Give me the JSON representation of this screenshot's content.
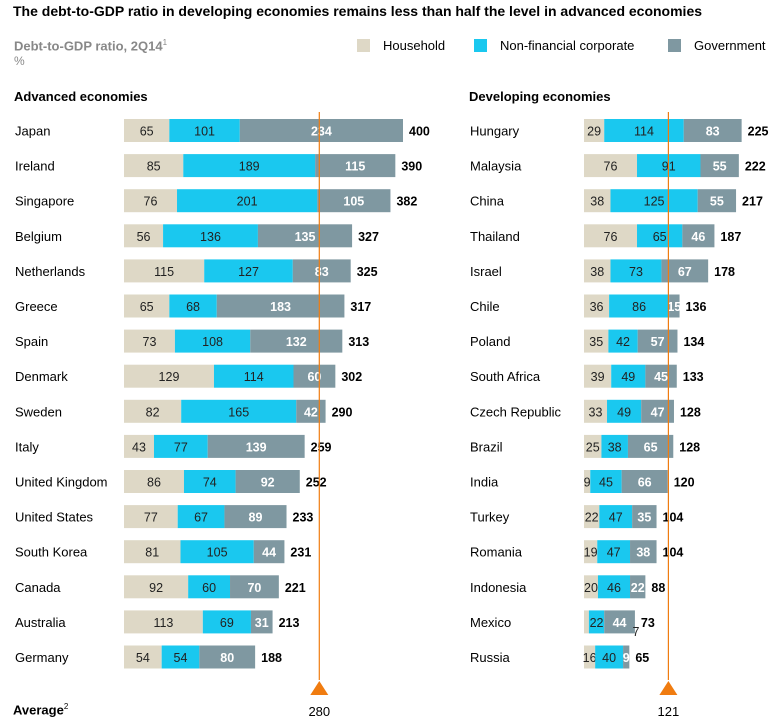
{
  "title": "The debt-to-GDP ratio in developing economies remains less than half the level in advanced economies",
  "subtitle": "Debt-to-GDP ratio, 2Q14",
  "subtitle_footnote": "1",
  "unit": "%",
  "average_label": "Average",
  "average_footnote": "2",
  "legend": [
    {
      "name": "Household",
      "color": "#ded8c6"
    },
    {
      "name": "Non-financial corporate",
      "color": "#1ac8ef"
    },
    {
      "name": "Government",
      "color": "#7f98a1"
    }
  ],
  "colors": {
    "household": "#ded8c6",
    "corporate": "#1ac8ef",
    "government": "#7f98a1",
    "average": "#f07c10"
  },
  "chart_data": [
    {
      "type": "bar",
      "orientation": "horizontal-stacked",
      "title": "Advanced economies",
      "categories": [
        "Japan",
        "Ireland",
        "Singapore",
        "Belgium",
        "Netherlands",
        "Greece",
        "Spain",
        "Denmark",
        "Sweden",
        "Italy",
        "United Kingdom",
        "United States",
        "South Korea",
        "Canada",
        "Australia",
        "Germany"
      ],
      "series": [
        {
          "name": "Household",
          "values": [
            65,
            85,
            76,
            56,
            115,
            65,
            73,
            129,
            82,
            43,
            86,
            77,
            81,
            92,
            113,
            54
          ]
        },
        {
          "name": "Non-financial corporate",
          "values": [
            101,
            189,
            201,
            136,
            127,
            68,
            108,
            114,
            165,
            77,
            74,
            67,
            105,
            60,
            69,
            54
          ]
        },
        {
          "name": "Government",
          "values": [
            234,
            115,
            105,
            135,
            83,
            183,
            132,
            60,
            42,
            139,
            92,
            89,
            44,
            70,
            31,
            80
          ]
        }
      ],
      "totals": [
        400,
        390,
        382,
        327,
        325,
        317,
        313,
        302,
        290,
        259,
        252,
        233,
        231,
        221,
        213,
        188
      ],
      "average": 280
    },
    {
      "type": "bar",
      "orientation": "horizontal-stacked",
      "title": "Developing economies",
      "categories": [
        "Hungary",
        "Malaysia",
        "China",
        "Thailand",
        "Israel",
        "Chile",
        "Poland",
        "South Africa",
        "Czech Republic",
        "Brazil",
        "India",
        "Turkey",
        "Romania",
        "Indonesia",
        "Mexico",
        "Russia"
      ],
      "series": [
        {
          "name": "Household",
          "values": [
            29,
            76,
            38,
            76,
            38,
            36,
            35,
            39,
            33,
            25,
            9,
            22,
            19,
            20,
            "",
            16
          ]
        },
        {
          "name": "Non-financial corporate",
          "values": [
            114,
            91,
            125,
            65,
            73,
            86,
            42,
            49,
            49,
            38,
            45,
            47,
            47,
            46,
            22,
            40
          ]
        },
        {
          "name": "Government",
          "values": [
            83,
            55,
            55,
            46,
            67,
            15,
            57,
            45,
            47,
            65,
            66,
            35,
            38,
            22,
            44,
            9
          ]
        }
      ],
      "household_raw": [
        29,
        76,
        38,
        76,
        38,
        36,
        35,
        39,
        33,
        25,
        9,
        22,
        19,
        20,
        7,
        16
      ],
      "household_label_override": {
        "Mexico": "7"
      },
      "totals": [
        225,
        222,
        217,
        187,
        178,
        136,
        134,
        133,
        128,
        128,
        120,
        104,
        104,
        88,
        73,
        65
      ],
      "average": 121
    }
  ]
}
